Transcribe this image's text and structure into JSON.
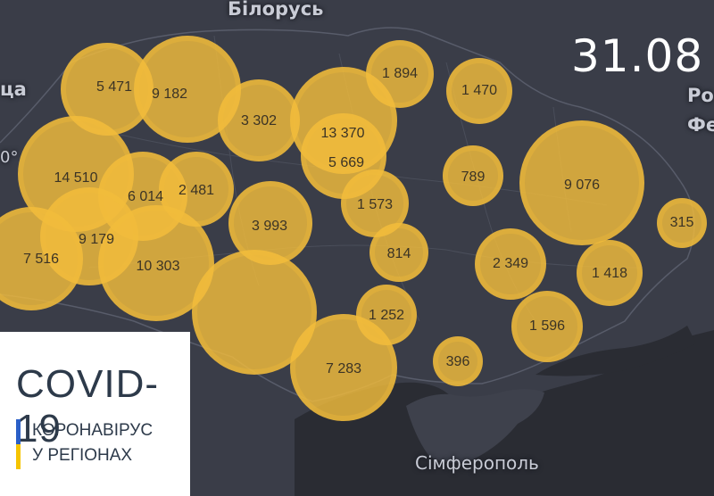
{
  "date": "31.08",
  "badge": {
    "title": "COVID-19",
    "line1": "КОРОНАВІРУС",
    "line2": "У РЕГІОНАХ",
    "stripe_colors": [
      "#2a5fc7",
      "#f5c400"
    ]
  },
  "places": {
    "belarus": "Білорусь",
    "left_edge": "ца",
    "left_edge_2": "0°",
    "russia_1": "Ро",
    "russia_2": "Фе",
    "simferopol": "Сімферополь"
  },
  "colors": {
    "background": "#3a3d48",
    "bubble": "#f2bc3c",
    "sea": "#2a2c33",
    "border": "#585c6a"
  },
  "regions": [
    {
      "name": "",
      "count": "5 471"
    },
    {
      "name": "",
      "count": "9 182"
    },
    {
      "name": "",
      "count": "3 302"
    },
    {
      "name": "",
      "count": "13 370"
    },
    {
      "name": "",
      "count": "5 669"
    },
    {
      "name": "",
      "count": "1 894"
    },
    {
      "name": "",
      "count": "1 470"
    },
    {
      "name": "",
      "count": "14 510"
    },
    {
      "name": "",
      "count": "6 014"
    },
    {
      "name": "",
      "count": "2 481"
    },
    {
      "name": "",
      "count": "3 993"
    },
    {
      "name": "",
      "count": "1 573"
    },
    {
      "name": "",
      "count": "789"
    },
    {
      "name": "",
      "count": "9 076"
    },
    {
      "name": "",
      "count": "315"
    },
    {
      "name": "",
      "count": "9 179"
    },
    {
      "name": "",
      "count": "7 516"
    },
    {
      "name": "",
      "count": "10 303"
    },
    {
      "name": "",
      "count": "814"
    },
    {
      "name": "",
      "count": "2 349"
    },
    {
      "name": "",
      "count": "1 418"
    },
    {
      "name": "",
      "count": "1 252"
    },
    {
      "name": "",
      "count": "1 596"
    },
    {
      "name": "",
      "count": "7 283"
    },
    {
      "name": "",
      "count": "396"
    },
    {
      "name": "",
      "count": ""
    }
  ]
}
